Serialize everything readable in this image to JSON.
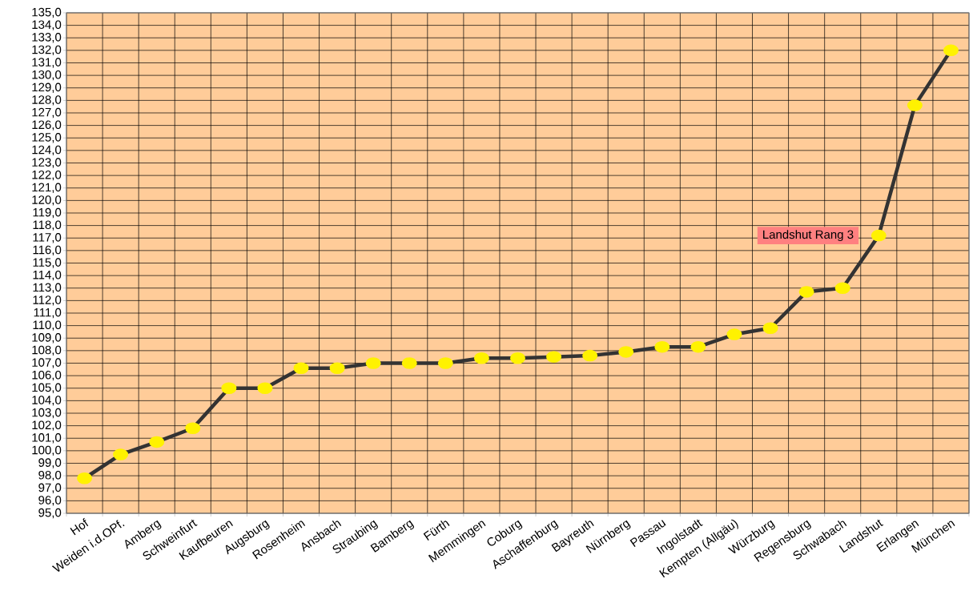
{
  "chart_data": {
    "type": "line",
    "categories": [
      "Hof",
      "Weiden i.d.OPf.",
      "Amberg",
      "Schweinfurt",
      "Kaufbeuren",
      "Augsburg",
      "Rosenheim",
      "Ansbach",
      "Straubing",
      "Bamberg",
      "Fürth",
      "Memmingen",
      "Coburg",
      "Aschaffenburg",
      "Bayreuth",
      "Nürnberg",
      "Passau",
      "Ingolstadt",
      "Kempten (Allgäu)",
      "Würzburg",
      "Regensburg",
      "Schwabach",
      "Landshut",
      "Erlangen",
      "München"
    ],
    "series": [
      {
        "color": "#333333",
        "values": [
          97.8,
          99.7,
          100.7,
          101.8,
          105.0,
          105.0,
          106.6,
          106.6,
          107.0,
          107.0,
          107.0,
          107.4,
          107.4,
          107.5,
          107.6,
          107.9,
          108.3,
          108.3,
          109.3,
          109.8,
          112.7,
          113.0,
          117.2,
          127.6,
          132.0
        ]
      }
    ],
    "ylim": [
      95,
      135
    ],
    "yticks": [
      {
        "value": 95,
        "label": "95,0"
      },
      {
        "value": 96,
        "label": "96,0"
      },
      {
        "value": 97,
        "label": "97,0"
      },
      {
        "value": 98,
        "label": "98,0"
      },
      {
        "value": 99,
        "label": "99,0"
      },
      {
        "value": 100,
        "label": "100,0"
      },
      {
        "value": 101,
        "label": "101,0"
      },
      {
        "value": 102,
        "label": "102,0"
      },
      {
        "value": 103,
        "label": "103,0"
      },
      {
        "value": 104,
        "label": "104,0"
      },
      {
        "value": 105,
        "label": "105,0"
      },
      {
        "value": 106,
        "label": "106,0"
      },
      {
        "value": 107,
        "label": "107,0"
      },
      {
        "value": 108,
        "label": "108,0"
      },
      {
        "value": 109,
        "label": "109,0"
      },
      {
        "value": 110,
        "label": "110,0"
      },
      {
        "value": 111,
        "label": "111,0"
      },
      {
        "value": 112,
        "label": "112,0"
      },
      {
        "value": 113,
        "label": "113,0"
      },
      {
        "value": 114,
        "label": "114,0"
      },
      {
        "value": 115,
        "label": "115,0"
      },
      {
        "value": 116,
        "label": "116,0"
      },
      {
        "value": 117,
        "label": "117,0"
      },
      {
        "value": 118,
        "label": "118,0"
      },
      {
        "value": 119,
        "label": "119,0"
      },
      {
        "value": 120,
        "label": "120,0"
      },
      {
        "value": 121,
        "label": "121,0"
      },
      {
        "value": 122,
        "label": "122,0"
      },
      {
        "value": 123,
        "label": "123,0"
      },
      {
        "value": 124,
        "label": "124,0"
      },
      {
        "value": 125,
        "label": "125,0"
      },
      {
        "value": 126,
        "label": "126,0"
      },
      {
        "value": 127,
        "label": "127,0"
      },
      {
        "value": 128,
        "label": "128,0"
      },
      {
        "value": 129,
        "label": "129,0"
      },
      {
        "value": 130,
        "label": "130,0"
      },
      {
        "value": 131,
        "label": "131,0"
      },
      {
        "value": 132,
        "label": "132,0"
      },
      {
        "value": 133,
        "label": "133,0"
      },
      {
        "value": 134,
        "label": "134,0"
      },
      {
        "value": 135,
        "label": "135,0"
      }
    ],
    "annotations": [
      {
        "text": "Landshut  Rang 3",
        "x": "Landshut",
        "y": 117.2
      }
    ],
    "grid": true,
    "marker": "circle",
    "line_style": "solid"
  }
}
